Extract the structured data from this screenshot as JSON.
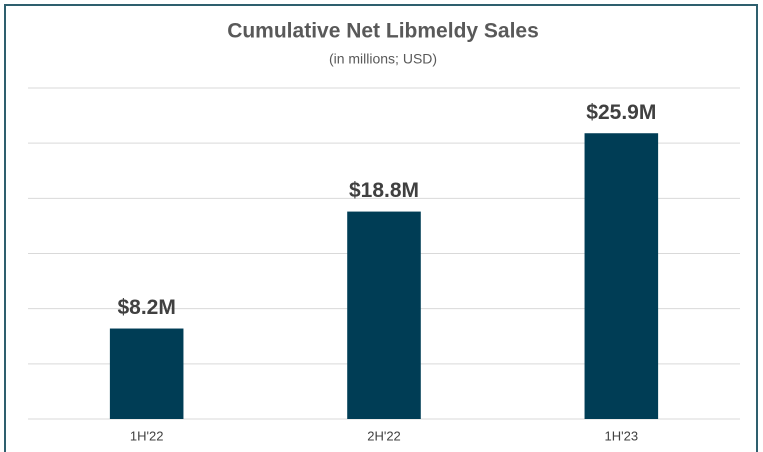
{
  "chart_data": {
    "type": "bar",
    "title": "Cumulative Net Libmeldy Sales",
    "subtitle": "(in millions; USD)",
    "categories": [
      "1H'22",
      "2H'22",
      "1H'23"
    ],
    "values": [
      8.2,
      18.8,
      25.9
    ],
    "value_labels": [
      "$8.2M",
      "$18.8M",
      "$25.9M"
    ],
    "color": "#003d55",
    "ylim": [
      0,
      30
    ],
    "yticks": [
      0,
      5,
      10,
      15,
      20,
      25,
      30
    ],
    "grid": true
  }
}
